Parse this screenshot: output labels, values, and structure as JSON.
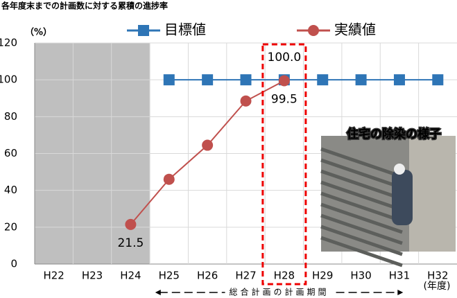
{
  "chart_data": {
    "type": "line",
    "title": "各年度末までの計画数に対する累積の進捗率",
    "y_unit": "（%）",
    "x_unit": "(年度)",
    "period_annotation": "総合計画の計画期間",
    "photo_caption": "住宅の除染の様子",
    "categories": [
      "H22",
      "H23",
      "H24",
      "H25",
      "H26",
      "H27",
      "H28",
      "H29",
      "H30",
      "H31",
      "H32"
    ],
    "series": [
      {
        "name": "目標値",
        "color": "#2e75b6",
        "marker": "square",
        "values": [
          null,
          null,
          null,
          100,
          100,
          100,
          100,
          100,
          100,
          100,
          100
        ],
        "value_labels": [
          null,
          null,
          null,
          null,
          null,
          null,
          "100.0",
          null,
          null,
          null,
          null
        ]
      },
      {
        "name": "実績値",
        "color": "#c0504d",
        "marker": "circle",
        "values": [
          null,
          null,
          21.5,
          46,
          64.5,
          88.5,
          99.5,
          null,
          null,
          null,
          null
        ],
        "value_labels": [
          null,
          null,
          "21.5",
          null,
          null,
          null,
          "99.5",
          null,
          null,
          null,
          null
        ]
      }
    ],
    "ylim": [
      0,
      120
    ],
    "yticks": [
      0,
      20,
      40,
      60,
      80,
      100,
      120
    ],
    "grid": true,
    "shaded_band": [
      0,
      2
    ],
    "highlighted_category": 6,
    "legend": "top"
  }
}
